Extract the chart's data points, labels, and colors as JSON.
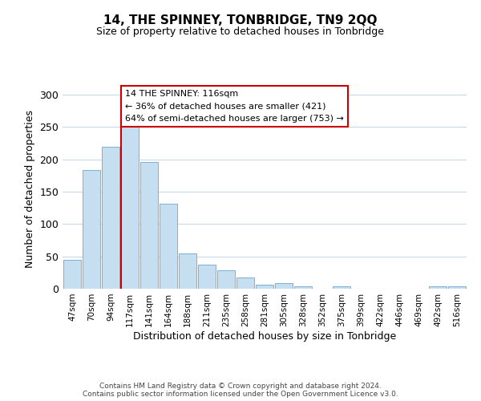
{
  "title": "14, THE SPINNEY, TONBRIDGE, TN9 2QQ",
  "subtitle": "Size of property relative to detached houses in Tonbridge",
  "xlabel": "Distribution of detached houses by size in Tonbridge",
  "ylabel": "Number of detached properties",
  "bar_labels": [
    "47sqm",
    "70sqm",
    "94sqm",
    "117sqm",
    "141sqm",
    "164sqm",
    "188sqm",
    "211sqm",
    "235sqm",
    "258sqm",
    "281sqm",
    "305sqm",
    "328sqm",
    "352sqm",
    "375sqm",
    "399sqm",
    "422sqm",
    "446sqm",
    "469sqm",
    "492sqm",
    "516sqm"
  ],
  "bar_values": [
    45,
    183,
    220,
    250,
    196,
    132,
    54,
    37,
    28,
    17,
    6,
    9,
    4,
    0,
    4,
    0,
    0,
    0,
    0,
    4,
    4
  ],
  "bar_color": "#c6dff0",
  "bar_edge_color": "#7ab0d4",
  "highlight_index": 3,
  "highlight_line_color": "#cc0000",
  "ylim": [
    0,
    310
  ],
  "yticks": [
    0,
    50,
    100,
    150,
    200,
    250,
    300
  ],
  "annotation_title": "14 THE SPINNEY: 116sqm",
  "annotation_line1": "← 36% of detached houses are smaller (421)",
  "annotation_line2": "64% of semi-detached houses are larger (753) →",
  "annotation_box_color": "#ffffff",
  "annotation_box_edge": "#cc0000",
  "footer_line1": "Contains HM Land Registry data © Crown copyright and database right 2024.",
  "footer_line2": "Contains public sector information licensed under the Open Government Licence v3.0.",
  "background_color": "#ffffff",
  "grid_color": "#c8d8e8"
}
